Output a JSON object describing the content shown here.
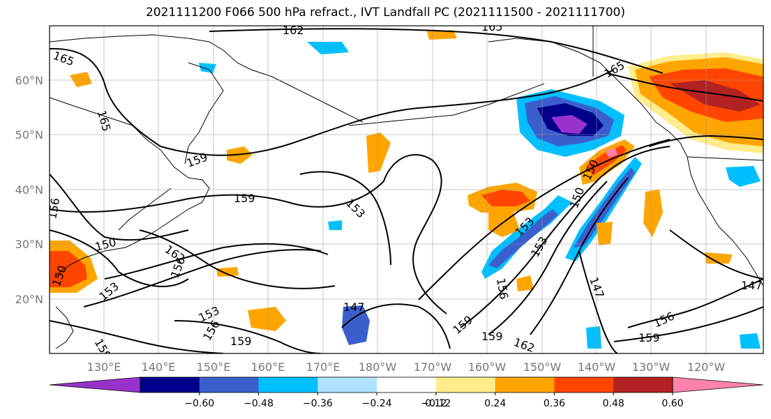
{
  "title": "2021111200 F066 500 hPa refract., IVT Landfall PC (2021111500 - 2021111700)",
  "lat_labels": [
    "60°N",
    "50°N",
    "40°N",
    "30°N",
    "20°N"
  ],
  "lon_labels": [
    "130°E",
    "140°E",
    "150°E",
    "160°E",
    "170°E",
    "180°W",
    "170°W",
    "160°W",
    "150°W",
    "140°W",
    "130°W",
    "120°W"
  ],
  "contour_labels": [
    "162",
    "165",
    "165",
    "165",
    "165",
    "159",
    "159",
    "153",
    "156",
    "150",
    "150",
    "162",
    "156",
    "153",
    "153",
    "156",
    "159",
    "159",
    "147",
    "159",
    "159",
    "156",
    "153",
    "150",
    "153",
    "147",
    "159",
    "156",
    "162",
    "147",
    "150"
  ],
  "colorbar": {
    "ticks": [
      "−0.60",
      "−0.48",
      "−0.36",
      "−0.24",
      "−0.12",
      "0.12",
      "0.24",
      "0.36",
      "0.48",
      "0.60"
    ],
    "colors": [
      "#9932cc",
      "#00008b",
      "#3a5fcd",
      "#00bfff",
      "#b0e2ff",
      "#ffffff",
      "#ffec8b",
      "#ffa500",
      "#ff4500",
      "#b22222",
      "#ff82ab"
    ]
  }
}
